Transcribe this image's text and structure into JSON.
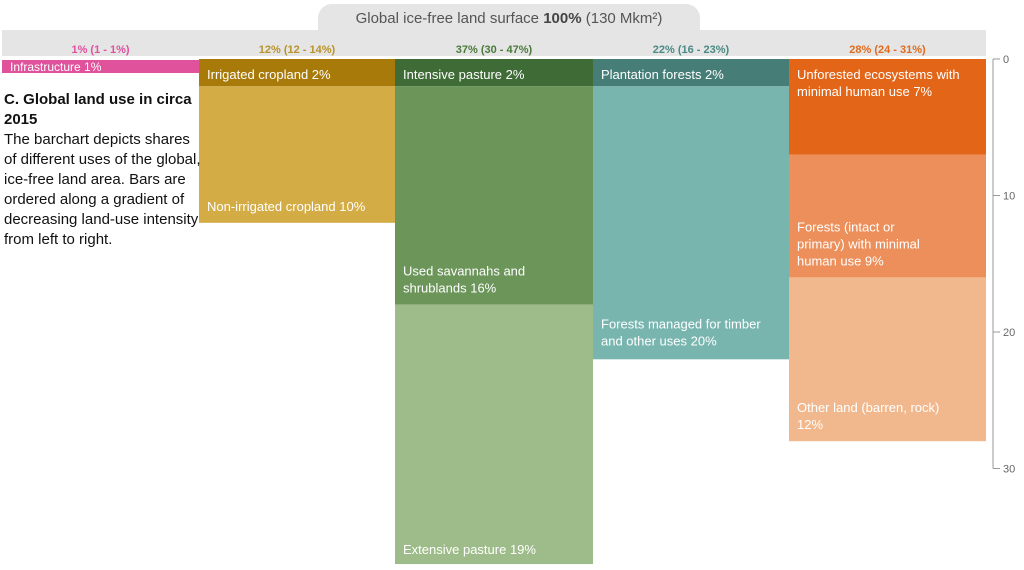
{
  "chart_data": {
    "type": "bar",
    "title_prefix": "Global ice-free land surface",
    "title_bold": "100%",
    "title_suffix": "(130 Mkm²)",
    "yaxis": {
      "ylim": [
        0,
        30
      ],
      "ticks": [
        0,
        10,
        20,
        30
      ]
    },
    "description_heading": "C. Global land use in circa 2015",
    "description": "The barchart depicts shares of different uses of the global, ice-free land area. Bars are ordered along a gradient of decreasing land-use intensity from left to right.",
    "columns": [
      {
        "header": "1% (1 - 1%)",
        "header_color": "#e0529c",
        "width_pct": 1,
        "segments": [
          {
            "label": "Infrastructure 1%",
            "value": 1,
            "color": "#e0529c"
          }
        ]
      },
      {
        "header": "12% (12 - 14%)",
        "header_color": "#b8932a",
        "width_pct": 12,
        "segments": [
          {
            "label": "Irrigated cropland 2%",
            "value": 2,
            "color": "#a87a0a"
          },
          {
            "label": "Non-irrigated cropland 10%",
            "value": 10,
            "color": "#d4ac45"
          }
        ]
      },
      {
        "header": "37% (30 - 47%)",
        "header_color": "#4a7a3a",
        "width_pct": 37,
        "segments": [
          {
            "label": "Intensive pasture 2%",
            "value": 2,
            "color": "#3f6b36"
          },
          {
            "label": "Used savannahs and shrublands 16%",
            "value": 16,
            "color": "#6b9559"
          },
          {
            "label": "Extensive pasture 19%",
            "value": 19,
            "color": "#9ebc8a"
          }
        ]
      },
      {
        "header": "22% (16 - 23%)",
        "header_color": "#4a8a85",
        "width_pct": 22,
        "segments": [
          {
            "label": "Plantation forests 2%",
            "value": 2,
            "color": "#467d77"
          },
          {
            "label": "Forests managed for timber and other uses 20%",
            "value": 20,
            "color": "#78b5ae"
          }
        ]
      },
      {
        "header": "28% (24 - 31%)",
        "header_color": "#e06b20",
        "width_pct": 28,
        "segments": [
          {
            "label": "Unforested ecosystems with minimal human use 7%",
            "value": 7,
            "color": "#e26518"
          },
          {
            "label": "Forests (intact or primary) with minimal human use 9%",
            "value": 9,
            "color": "#ec8f5a"
          },
          {
            "label": "Other land (barren, rock) 12%",
            "value": 12,
            "color": "#f1b88e"
          }
        ]
      }
    ]
  }
}
